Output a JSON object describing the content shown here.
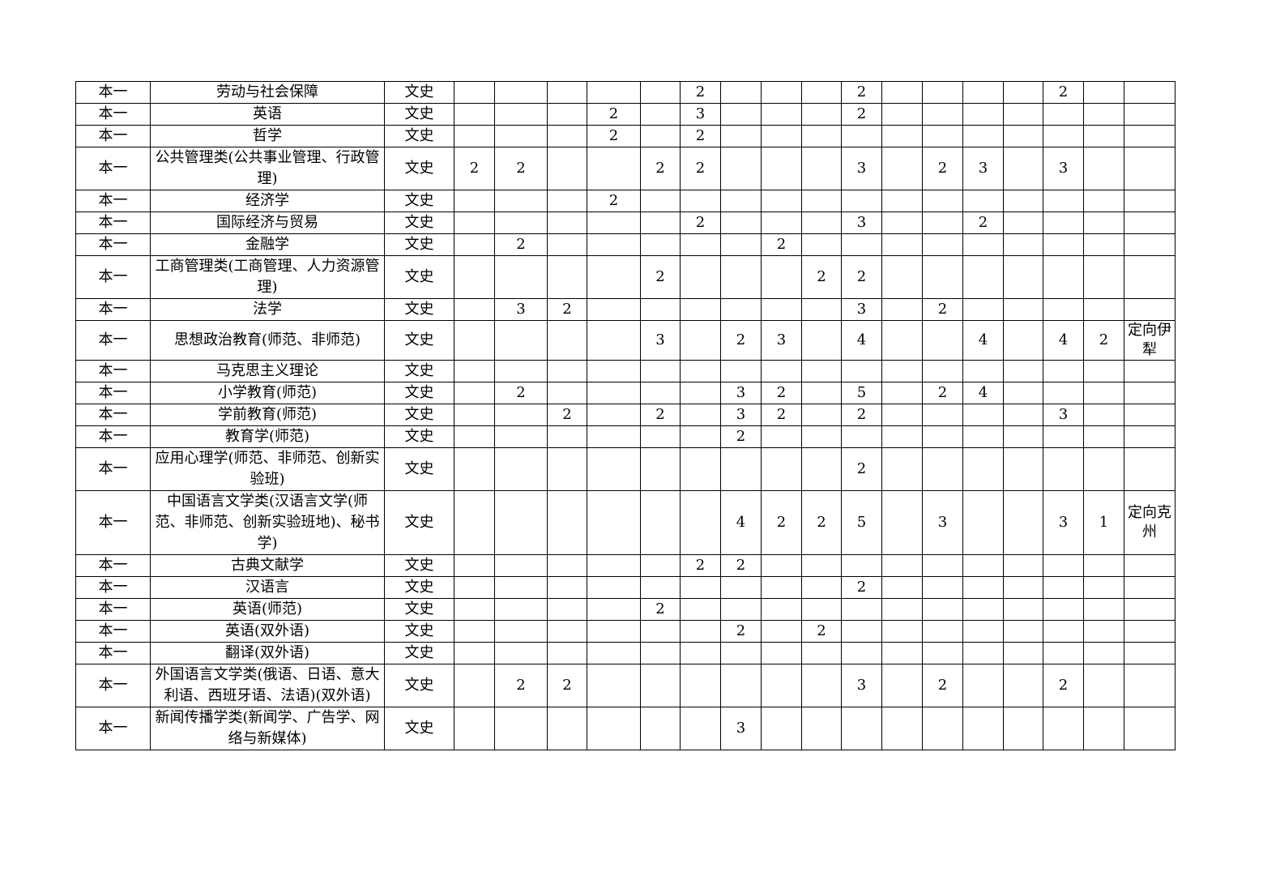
{
  "table": {
    "rows": [
      {
        "level": "本一",
        "major": "劳动与社会保障",
        "type": "文史",
        "values": [
          "",
          "",
          "",
          "",
          "",
          "2",
          "",
          "",
          "",
          "2",
          "",
          "",
          "",
          "",
          "2",
          ""
        ],
        "remark": ""
      },
      {
        "level": "本一",
        "major": "英语",
        "type": "文史",
        "values": [
          "",
          "",
          "",
          "2",
          "",
          "3",
          "",
          "",
          "",
          "2",
          "",
          "",
          "",
          "",
          "",
          ""
        ],
        "remark": ""
      },
      {
        "level": "本一",
        "major": "哲学",
        "type": "文史",
        "values": [
          "",
          "",
          "",
          "2",
          "",
          "2",
          "",
          "",
          "",
          "",
          "",
          "",
          "",
          "",
          "",
          ""
        ],
        "remark": ""
      },
      {
        "level": "本一",
        "major": "公共管理类(公共事业管理、行政管理)",
        "type": "文史",
        "values": [
          "2",
          "2",
          "",
          "",
          "2",
          "2",
          "",
          "",
          "",
          "3",
          "",
          "2",
          "3",
          "",
          "3",
          ""
        ],
        "remark": ""
      },
      {
        "level": "本一",
        "major": "经济学",
        "type": "文史",
        "values": [
          "",
          "",
          "",
          "2",
          "",
          "",
          "",
          "",
          "",
          "",
          "",
          "",
          "",
          "",
          "",
          ""
        ],
        "remark": ""
      },
      {
        "level": "本一",
        "major": "国际经济与贸易",
        "type": "文史",
        "values": [
          "",
          "",
          "",
          "",
          "",
          "2",
          "",
          "",
          "",
          "3",
          "",
          "",
          "2",
          "",
          "",
          ""
        ],
        "remark": ""
      },
      {
        "level": "本一",
        "major": "金融学",
        "type": "文史",
        "values": [
          "",
          "2",
          "",
          "",
          "",
          "",
          "",
          "2",
          "",
          "",
          "",
          "",
          "",
          "",
          "",
          ""
        ],
        "remark": ""
      },
      {
        "level": "本一",
        "major": "工商管理类(工商管理、人力资源管理)",
        "type": "文史",
        "values": [
          "",
          "",
          "",
          "",
          "2",
          "",
          "",
          "",
          "2",
          "2",
          "",
          "",
          "",
          "",
          "",
          ""
        ],
        "remark": ""
      },
      {
        "level": "本一",
        "major": "法学",
        "type": "文史",
        "values": [
          "",
          "3",
          "2",
          "",
          "",
          "",
          "",
          "",
          "",
          "3",
          "",
          "2",
          "",
          "",
          "",
          ""
        ],
        "remark": ""
      },
      {
        "level": "本一",
        "major": "思想政治教育(师范、非师范)",
        "type": "文史",
        "values": [
          "",
          "",
          "",
          "",
          "3",
          "",
          "2",
          "3",
          "",
          "4",
          "",
          "",
          "4",
          "",
          "4",
          "2"
        ],
        "remark": "定向伊犁"
      },
      {
        "level": "本一",
        "major": "马克思主义理论",
        "type": "文史",
        "values": [
          "",
          "",
          "",
          "",
          "",
          "",
          "",
          "",
          "",
          "",
          "",
          "",
          "",
          "",
          "",
          ""
        ],
        "remark": ""
      },
      {
        "level": "本一",
        "major": "小学教育(师范)",
        "type": "文史",
        "values": [
          "",
          "2",
          "",
          "",
          "",
          "",
          "3",
          "2",
          "",
          "5",
          "",
          "2",
          "4",
          "",
          "",
          ""
        ],
        "remark": ""
      },
      {
        "level": "本一",
        "major": "学前教育(师范)",
        "type": "文史",
        "values": [
          "",
          "",
          "2",
          "",
          "2",
          "",
          "3",
          "2",
          "",
          "2",
          "",
          "",
          "",
          "",
          "3",
          ""
        ],
        "remark": ""
      },
      {
        "level": "本一",
        "major": "教育学(师范)",
        "type": "文史",
        "values": [
          "",
          "",
          "",
          "",
          "",
          "",
          "2",
          "",
          "",
          "",
          "",
          "",
          "",
          "",
          "",
          ""
        ],
        "remark": ""
      },
      {
        "level": "本一",
        "major": "应用心理学(师范、非师范、创新实验班)",
        "type": "文史",
        "values": [
          "",
          "",
          "",
          "",
          "",
          "",
          "",
          "",
          "",
          "2",
          "",
          "",
          "",
          "",
          "",
          ""
        ],
        "remark": ""
      },
      {
        "level": "本一",
        "major": "中国语言文学类(汉语言文学(师范、非师范、创新实验班地)、秘书学)",
        "type": "文史",
        "values": [
          "",
          "",
          "",
          "",
          "",
          "",
          "4",
          "2",
          "2",
          "5",
          "",
          "3",
          "",
          "",
          "3",
          "1"
        ],
        "remark": "定向克州"
      },
      {
        "level": "本一",
        "major": "古典文献学",
        "type": "文史",
        "values": [
          "",
          "",
          "",
          "",
          "",
          "2",
          "2",
          "",
          "",
          "",
          "",
          "",
          "",
          "",
          "",
          ""
        ],
        "remark": ""
      },
      {
        "level": "本一",
        "major": "汉语言",
        "type": "文史",
        "values": [
          "",
          "",
          "",
          "",
          "",
          "",
          "",
          "",
          "",
          "2",
          "",
          "",
          "",
          "",
          "",
          ""
        ],
        "remark": ""
      },
      {
        "level": "本一",
        "major": "英语(师范)",
        "type": "文史",
        "values": [
          "",
          "",
          "",
          "",
          "2",
          "",
          "",
          "",
          "",
          "",
          "",
          "",
          "",
          "",
          "",
          ""
        ],
        "remark": ""
      },
      {
        "level": "本一",
        "major": "英语(双外语)",
        "type": "文史",
        "values": [
          "",
          "",
          "",
          "",
          "",
          "",
          "2",
          "",
          "2",
          "",
          "",
          "",
          "",
          "",
          "",
          ""
        ],
        "remark": ""
      },
      {
        "level": "本一",
        "major": "翻译(双外语)",
        "type": "文史",
        "values": [
          "",
          "",
          "",
          "",
          "",
          "",
          "",
          "",
          "",
          "",
          "",
          "",
          "",
          "",
          "",
          ""
        ],
        "remark": ""
      },
      {
        "level": "本一",
        "major": "外国语言文学类(俄语、日语、意大利语、西班牙语、法语)(双外语)",
        "type": "文史",
        "values": [
          "",
          "2",
          "2",
          "",
          "",
          "",
          "",
          "",
          "",
          "3",
          "",
          "2",
          "",
          "",
          "2",
          ""
        ],
        "remark": ""
      },
      {
        "level": "本一",
        "major": "新闻传播学类(新闻学、广告学、网络与新媒体)",
        "type": "文史",
        "values": [
          "",
          "",
          "",
          "",
          "",
          "",
          "3",
          "",
          "",
          "",
          "",
          "",
          "",
          "",
          "",
          ""
        ],
        "remark": ""
      }
    ]
  }
}
